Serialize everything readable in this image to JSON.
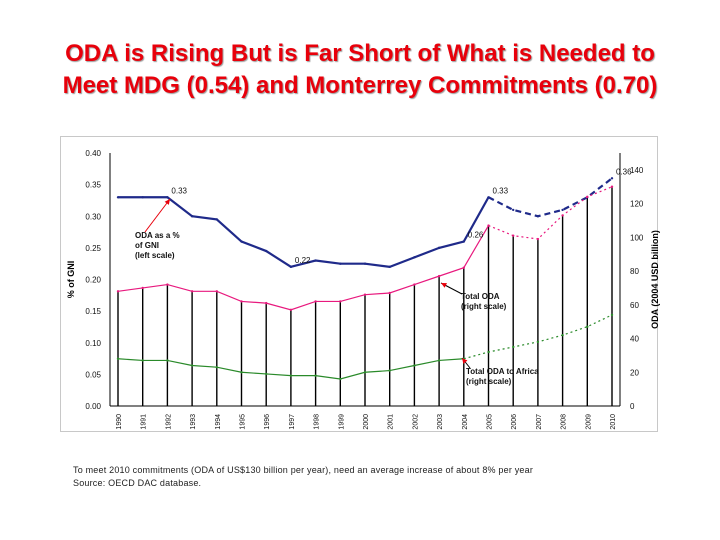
{
  "title": {
    "line1": "ODA is Rising But is Far Short of What is Needed to",
    "line2": "Meet MDG (0.54) and Monterrey Commitments (0.70)"
  },
  "footer": {
    "note": "To meet 2010 commitments (ODA of US$130 billion per year), need an average increase of about 8% per year",
    "source": "Source: OECD DAC database."
  },
  "colors": {
    "title": "#e8000b",
    "oda_gni": "#1f2a8a",
    "total_oda": "#e8197e",
    "africa": "#2a8a2a",
    "bars": "#000000",
    "arrow": "#e8000b"
  },
  "chart_data": {
    "type": "line",
    "title": "",
    "xlabel": "",
    "ylabel": "% of GNI",
    "y2label": "ODA (2004 USD billion)",
    "categories": [
      "1990",
      "1991",
      "1992",
      "1993",
      "1994",
      "1995",
      "1996",
      "1997",
      "1998",
      "1999",
      "2000",
      "2001",
      "2002",
      "2003",
      "2004",
      "2005",
      "2006",
      "2007",
      "2008",
      "2009",
      "2010"
    ],
    "ylim": [
      0,
      0.4
    ],
    "y_ticks": [
      "0.00",
      "0.05",
      "0.10",
      "0.15",
      "0.20",
      "0.25",
      "0.30",
      "0.35",
      "0.40"
    ],
    "y2lim": [
      0,
      150
    ],
    "y2_ticks": [
      "0",
      "20",
      "40",
      "60",
      "80",
      "100",
      "120",
      "140"
    ],
    "series": [
      {
        "name": "ODA as a % of GNI (left scale)",
        "axis": "left",
        "values": [
          0.33,
          0.33,
          0.33,
          0.3,
          0.295,
          0.26,
          0.245,
          0.22,
          0.23,
          0.225,
          0.225,
          0.22,
          0.235,
          0.25,
          0.26,
          0.33,
          0.31,
          0.3,
          0.31,
          0.33,
          0.36
        ],
        "actual_until": "2005"
      },
      {
        "name": "Total ODA (right scale)",
        "axis": "right",
        "values": [
          68,
          70,
          72,
          68,
          68,
          62,
          61,
          57,
          62,
          62,
          66,
          67,
          72,
          77,
          82,
          107,
          101,
          99,
          113,
          124,
          130
        ],
        "actual_until": "2005"
      },
      {
        "name": "Total ODA to Africa (right scale)",
        "axis": "right",
        "values": [
          28,
          27,
          27,
          24,
          23,
          20,
          19,
          18,
          18,
          16,
          20,
          21,
          24,
          27,
          28,
          32,
          35,
          38,
          42,
          47,
          54
        ],
        "actual_until": "2004"
      }
    ],
    "bars_from_year": "1990",
    "bars_to_year": "2010",
    "bar_series": "Total ODA (right scale)",
    "annotations": [
      {
        "text": "0.33",
        "year": "1992",
        "value": 0.33
      },
      {
        "text": "0.22",
        "year": "1997",
        "value": 0.22
      },
      {
        "text": "0.26",
        "year": "2004",
        "value": 0.26
      },
      {
        "text": "0.33",
        "year": "2005",
        "value": 0.33
      },
      {
        "text": "0.36",
        "year": "2010",
        "value": 0.36
      }
    ],
    "labels": {
      "gni": [
        "ODA as a %",
        "of GNI",
        "(left scale)"
      ],
      "total": [
        "Total ODA",
        "(right scale)"
      ],
      "africa": [
        "Total ODA to Africa",
        "(right scale)"
      ]
    }
  }
}
